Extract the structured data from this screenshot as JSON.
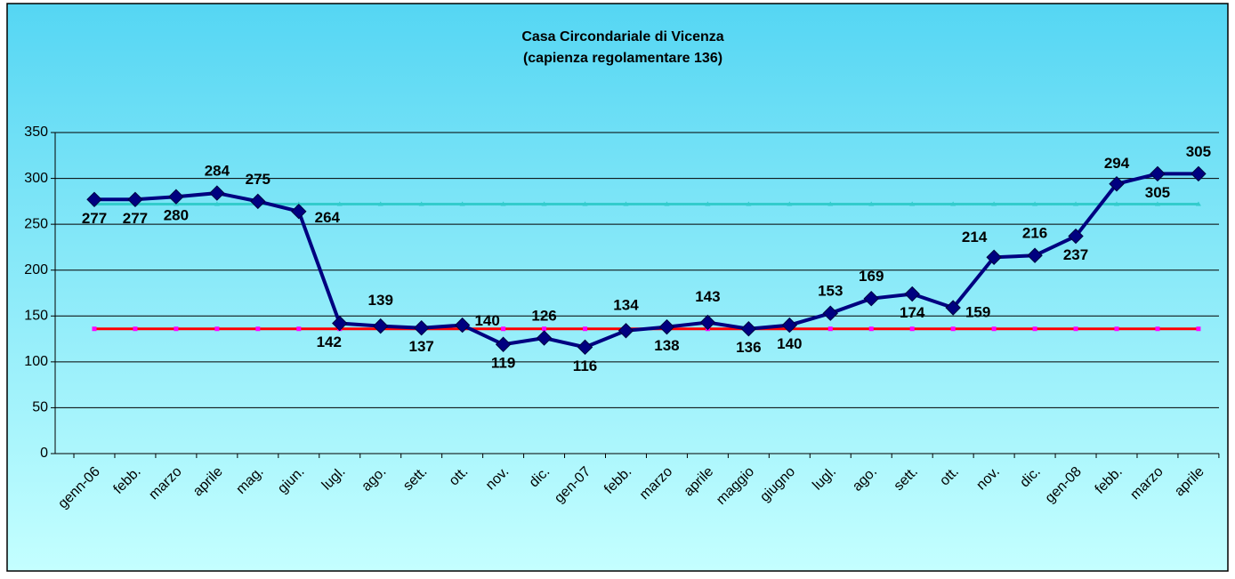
{
  "chart_data": {
    "type": "line",
    "title": "Casa Circondariale di Vicenza",
    "subtitle": "(capienza regolamentare 136)",
    "categories": [
      "genn-06",
      "febb.",
      "marzo",
      "aprile",
      "mag.",
      "giun.",
      "lugl.",
      "ago.",
      "sett.",
      "ott.",
      "nov.",
      "dic.",
      "gen-07",
      "febb.",
      "marzo",
      "aprile",
      "maggio",
      "giugno",
      "lugl.",
      "ago.",
      "sett.",
      "ott.",
      "nov.",
      "dic.",
      "gen-08",
      "febb.",
      "marzo",
      "aprile"
    ],
    "series": [
      {
        "color": "#000080",
        "marker": "diamond",
        "labels": true,
        "values": [
          277,
          277,
          280,
          284,
          275,
          264,
          142,
          139,
          137,
          140,
          119,
          126,
          116,
          134,
          138,
          143,
          136,
          140,
          153,
          169,
          174,
          159,
          214,
          216,
          237,
          294,
          305,
          305
        ]
      },
      {
        "color": "#33cccc",
        "marker": "triangle",
        "values": [
          272,
          272,
          272,
          272,
          272,
          272,
          272,
          272,
          272,
          272,
          272,
          272,
          272,
          272,
          272,
          272,
          272,
          272,
          272,
          272,
          272,
          272,
          272,
          272,
          272,
          272,
          272,
          272
        ]
      },
      {
        "color": "#ff0000",
        "marker": "square",
        "marker_color": "#ff00ff",
        "values": [
          136,
          136,
          136,
          136,
          136,
          136,
          136,
          136,
          136,
          136,
          136,
          136,
          136,
          136,
          136,
          136,
          136,
          136,
          136,
          136,
          136,
          136,
          136,
          136,
          136,
          136,
          136,
          136
        ]
      }
    ],
    "ylim": [
      0,
      350
    ],
    "yticks": [
      0,
      50,
      100,
      150,
      200,
      250,
      300,
      350
    ],
    "grid": true
  }
}
